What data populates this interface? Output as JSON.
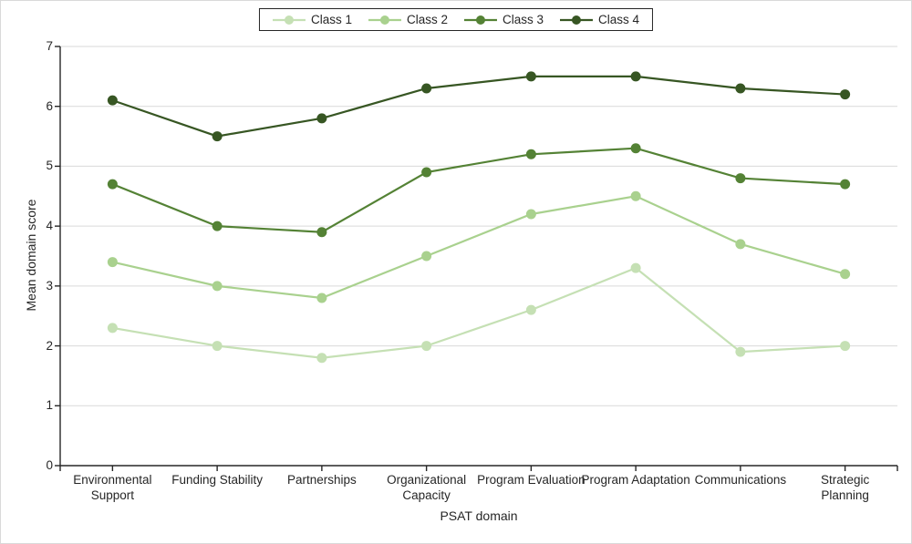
{
  "chart_data": {
    "type": "line",
    "title": "",
    "xlabel": "PSAT domain",
    "ylabel": "Mean domain score",
    "ylim": [
      0,
      7
    ],
    "y_ticks": [
      0,
      1,
      2,
      3,
      4,
      5,
      6,
      7
    ],
    "grid": "horizontal",
    "legend_position": "top-center",
    "categories": [
      "Environmental Support",
      "Funding Stability",
      "Partnerships",
      "Organizational Capacity",
      "Program Evaluation",
      "Program Adaptation",
      "Communications",
      "Strategic Planning"
    ],
    "category_lines": [
      [
        "Environmental",
        "Support"
      ],
      [
        "Funding Stability"
      ],
      [
        "Partnerships"
      ],
      [
        "Organizational",
        "Capacity"
      ],
      [
        "Program Evaluation"
      ],
      [
        "Program Adaptation"
      ],
      [
        "Communications"
      ],
      [
        "Strategic Planning"
      ]
    ],
    "series": [
      {
        "name": "Class 1",
        "color": "#C5E0B4",
        "values": [
          2.3,
          2.0,
          1.8,
          2.0,
          2.6,
          3.3,
          1.9,
          2.0
        ]
      },
      {
        "name": "Class 2",
        "color": "#A9D18E",
        "values": [
          3.4,
          3.0,
          2.8,
          3.5,
          4.2,
          4.5,
          3.7,
          3.2
        ]
      },
      {
        "name": "Class 3",
        "color": "#548235",
        "values": [
          4.7,
          4.0,
          3.9,
          4.9,
          5.2,
          5.3,
          4.8,
          4.7
        ]
      },
      {
        "name": "Class 4",
        "color": "#375623",
        "values": [
          6.1,
          5.5,
          5.8,
          6.3,
          6.5,
          6.5,
          6.3,
          6.2
        ]
      }
    ],
    "colors": {
      "gridline": "#D9D9D9",
      "axis": "#262626",
      "text": "#262626",
      "background": "#FFFFFF",
      "chart_border": "#D9D9D9",
      "legend_border": "#262626"
    }
  }
}
